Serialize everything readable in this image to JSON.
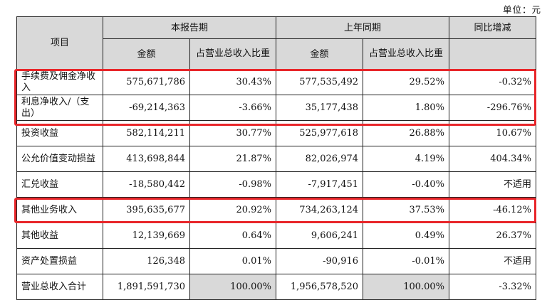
{
  "unit_label": "单位：元",
  "header": {
    "item": "项目",
    "current": "本报告期",
    "prior": "上年同期",
    "yoy": "同比增减",
    "amount": "金额",
    "ratio": "占营业总收入比重"
  },
  "rows": [
    {
      "name": "手续费及佣金净收入",
      "cur_amt": "575,671,786",
      "cur_pct": "30.43%",
      "pri_amt": "577,535,492",
      "pri_pct": "29.52%",
      "yoy": "-0.32%"
    },
    {
      "name": "利息净收入/（支出）",
      "cur_amt": "-69,214,363",
      "cur_pct": "-3.66%",
      "pri_amt": "35,177,438",
      "pri_pct": "1.80%",
      "yoy": "-296.76%"
    },
    {
      "name": "投资收益",
      "cur_amt": "582,114,211",
      "cur_pct": "30.77%",
      "pri_amt": "525,977,618",
      "pri_pct": "26.88%",
      "yoy": "10.67%"
    },
    {
      "name": "公允价值变动损益",
      "cur_amt": "413,698,844",
      "cur_pct": "21.87%",
      "pri_amt": "82,026,974",
      "pri_pct": "4.19%",
      "yoy": "404.34%"
    },
    {
      "name": "汇兑收益",
      "cur_amt": "-18,580,442",
      "cur_pct": "-0.98%",
      "pri_amt": "-7,917,451",
      "pri_pct": "-0.40%",
      "yoy": "不适用"
    },
    {
      "name": "其他业务收入",
      "cur_amt": "395,635,677",
      "cur_pct": "20.92%",
      "pri_amt": "734,263,124",
      "pri_pct": "37.53%",
      "yoy": "-46.12%"
    },
    {
      "name": "其他收益",
      "cur_amt": "12,139,669",
      "cur_pct": "0.64%",
      "pri_amt": "9,606,241",
      "pri_pct": "0.49%",
      "yoy": "26.37%"
    },
    {
      "name": "资产处置损益",
      "cur_amt": "126,348",
      "cur_pct": "0.01%",
      "pri_amt": "-90,916",
      "pri_pct": "-0.01%",
      "yoy": "不适用"
    },
    {
      "name": "营业总收入合计",
      "cur_amt": "1,891,591,730",
      "cur_pct": "100.00%",
      "pri_amt": "1,956,578,520",
      "pri_pct": "100.00%",
      "yoy": "-3.32%"
    }
  ],
  "highlight_color": "#e8262a"
}
